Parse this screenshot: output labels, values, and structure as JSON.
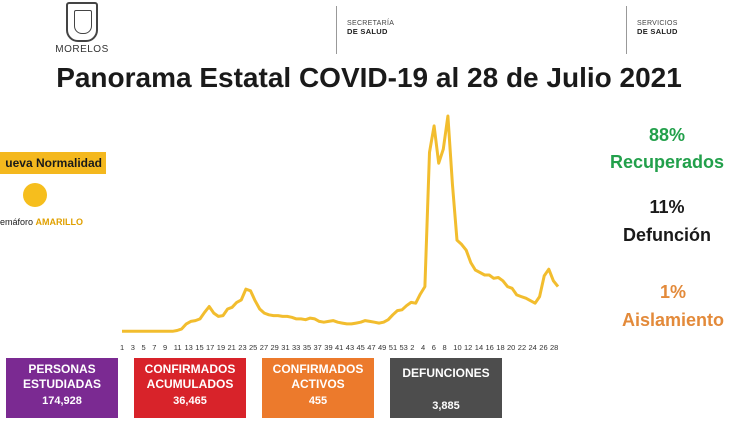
{
  "header": {
    "logo_text": "MORELOS",
    "dept1_line1": "SECRETARÍA",
    "dept1_line2": "DE SALUD",
    "dept2_line1": "SERVICIOS",
    "dept2_line2": "DE SALUD"
  },
  "title": "Panorama Estatal COVID-19 al 28 de Julio 2021",
  "semaforo": {
    "tag": "ueva Normalidad",
    "label_prefix": "emáforo",
    "label_color": "AMARILLO",
    "dot_color": "#f6be1d"
  },
  "stats": {
    "recuperados_pct": "88%",
    "recuperados_label": "Recuperados",
    "defuncion_pct": "11%",
    "defuncion_label": "Defunción",
    "aislamiento_pct": "1%",
    "aislamiento_label": "Aislamiento"
  },
  "boxes": {
    "personas_line1": "PERSONAS",
    "personas_line2": "ESTUDIADAS",
    "personas_value": "174,928",
    "conf_acum_line1": "CONFIRMADOS",
    "conf_acum_line2": "ACUMULADOS",
    "conf_acum_value": "36,465",
    "conf_act_line1": "CONFIRMADOS",
    "conf_act_line2": "ACTIVOS",
    "conf_act_value": "455",
    "def_line1": "DEFUNCIONES",
    "def_value": "3,885"
  },
  "colors": {
    "line": "#f2bd2e",
    "recuperados": "#22a04b",
    "aislamiento": "#e38a3a",
    "personas": "#7b2a92",
    "acumulados": "#d8232a",
    "activos": "#ec7a2c",
    "defunciones": "#4d4d4d"
  },
  "chart_data": {
    "type": "line",
    "title": "",
    "xlabel": "",
    "ylabel": "",
    "grid": false,
    "legend": "none",
    "x_tick_labels": [
      "1",
      "3",
      "5",
      "7",
      "9",
      "11",
      "13",
      "15",
      "17",
      "19",
      "21",
      "23",
      "25",
      "27",
      "29",
      "31",
      "33",
      "35",
      "37",
      "39",
      "41",
      "43",
      "45",
      "47",
      "49",
      "51",
      "53",
      "2",
      "4",
      "6",
      "8",
      "10",
      "12",
      "14",
      "16",
      "18",
      "20",
      "22",
      "24",
      "26",
      "28"
    ],
    "series": [
      {
        "values": [
          2,
          2,
          2,
          2,
          2,
          2,
          2,
          2,
          2,
          2,
          2,
          2,
          3,
          5,
          11,
          14,
          15,
          17,
          25,
          32,
          24,
          20,
          21,
          29,
          31,
          37,
          40,
          53,
          51,
          39,
          29,
          24,
          22,
          21,
          21,
          20,
          20,
          19,
          17,
          17,
          16,
          18,
          17,
          14,
          13,
          14,
          15,
          13,
          12,
          11,
          11,
          12,
          13,
          15,
          14,
          13,
          12,
          13,
          16,
          22,
          27,
          28,
          33,
          37,
          36,
          47,
          56,
          218,
          250,
          205,
          222,
          262,
          180,
          112,
          107,
          100,
          85,
          76,
          73,
          70,
          70,
          66,
          67,
          63,
          56,
          54,
          46,
          44,
          42,
          39,
          36,
          44,
          69,
          77,
          63,
          56
        ]
      }
    ]
  }
}
